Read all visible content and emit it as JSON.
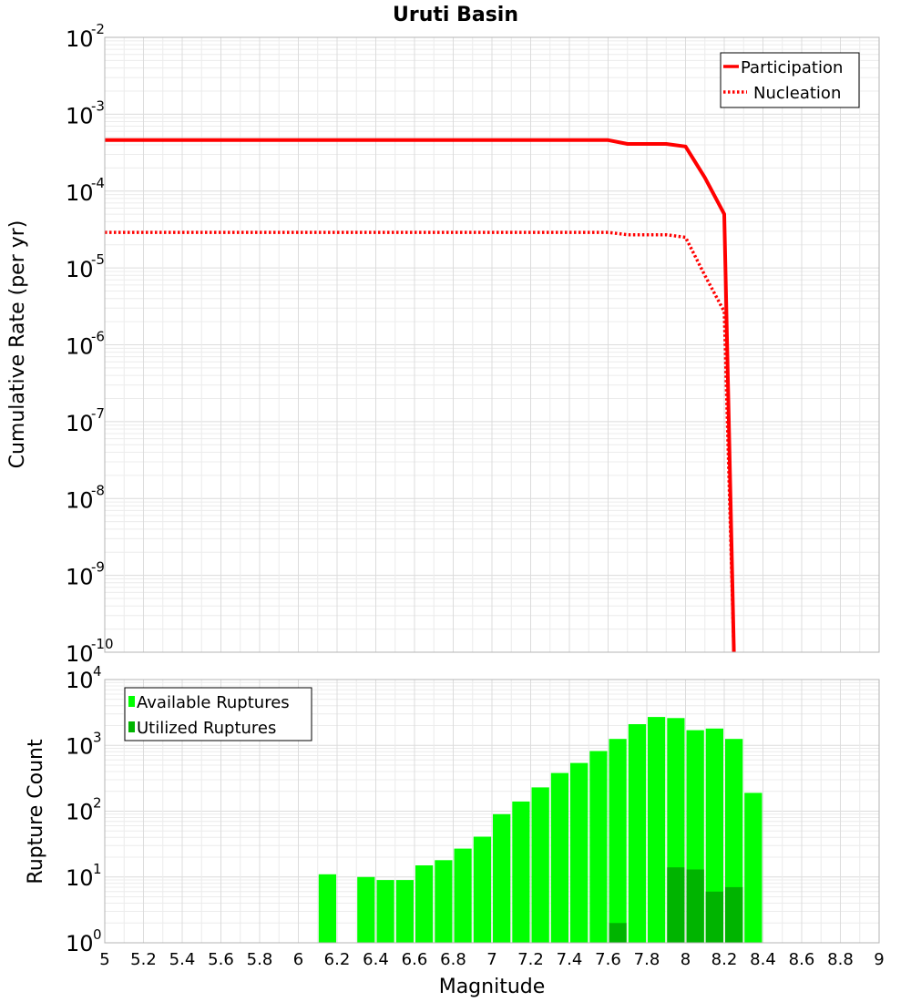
{
  "chart_data": [
    {
      "type": "line",
      "title": "Uruti Basin",
      "xlabel": "",
      "ylabel": "Cumulative Rate (per yr)",
      "xlim": [
        5,
        9
      ],
      "ylim_log10": [
        -10,
        -2
      ],
      "yscale": "log",
      "yticks": [
        {
          "base": "10",
          "exp": "-2"
        },
        {
          "base": "10",
          "exp": "-3"
        },
        {
          "base": "10",
          "exp": "-4"
        },
        {
          "base": "10",
          "exp": "-5"
        },
        {
          "base": "10",
          "exp": "-6"
        },
        {
          "base": "10",
          "exp": "-7"
        },
        {
          "base": "10",
          "exp": "-8"
        },
        {
          "base": "10",
          "exp": "-9"
        },
        {
          "base": "10",
          "exp": "-10"
        }
      ],
      "legend_position": "top-right",
      "series": [
        {
          "name": "Participation",
          "color": "#ff0000",
          "style": "solid",
          "x": [
            5.0,
            7.6,
            7.7,
            7.8,
            7.9,
            8.0,
            8.1,
            8.2,
            8.25
          ],
          "y": [
            0.00046,
            0.00046,
            0.00041,
            0.00041,
            0.00041,
            0.00038,
            0.00015,
            5e-05,
            1e-10
          ]
        },
        {
          "name": "Nucleation",
          "color": "#ff0000",
          "style": "dotted",
          "x": [
            5.0,
            7.6,
            7.7,
            7.8,
            7.9,
            8.0,
            8.1,
            8.2,
            8.25
          ],
          "y": [
            2.9e-05,
            2.9e-05,
            2.7e-05,
            2.7e-05,
            2.7e-05,
            2.5e-05,
            8e-06,
            2.7e-06,
            1e-10
          ]
        }
      ]
    },
    {
      "type": "bar",
      "xlabel": "Magnitude",
      "ylabel": "Rupture Count",
      "xlim": [
        5,
        9
      ],
      "ylim_log10": [
        0,
        4
      ],
      "yscale": "log",
      "yticks": [
        {
          "base": "10",
          "exp": "4"
        },
        {
          "base": "10",
          "exp": "3"
        },
        {
          "base": "10",
          "exp": "2"
        },
        {
          "base": "10",
          "exp": "1"
        },
        {
          "base": "10",
          "exp": "0"
        }
      ],
      "xticks": [
        "5",
        "5.2",
        "5.4",
        "5.6",
        "5.8",
        "6",
        "6.2",
        "6.4",
        "6.6",
        "6.8",
        "7",
        "7.2",
        "7.4",
        "7.6",
        "7.8",
        "8",
        "8.2",
        "8.4",
        "8.6",
        "8.8",
        "9"
      ],
      "legend_position": "top-left",
      "bin_width": 0.1,
      "series": [
        {
          "name": "Available Ruptures",
          "color": "#00ff00",
          "x": [
            6.15,
            6.35,
            6.45,
            6.55,
            6.65,
            6.75,
            6.85,
            6.95,
            7.05,
            7.15,
            7.25,
            7.35,
            7.45,
            7.55,
            7.65,
            7.75,
            7.85,
            7.95,
            8.05,
            8.15,
            8.25,
            8.35
          ],
          "values": [
            11,
            10,
            9,
            9,
            15,
            18,
            27,
            41,
            90,
            140,
            230,
            380,
            540,
            820,
            1250,
            2100,
            2700,
            2600,
            1700,
            1800,
            1250,
            190
          ]
        },
        {
          "name": "Utilized Ruptures",
          "color": "#00b400",
          "x": [
            7.65,
            7.95,
            8.05,
            8.15,
            8.25
          ],
          "values": [
            2,
            14,
            13,
            6,
            7
          ]
        }
      ]
    }
  ]
}
